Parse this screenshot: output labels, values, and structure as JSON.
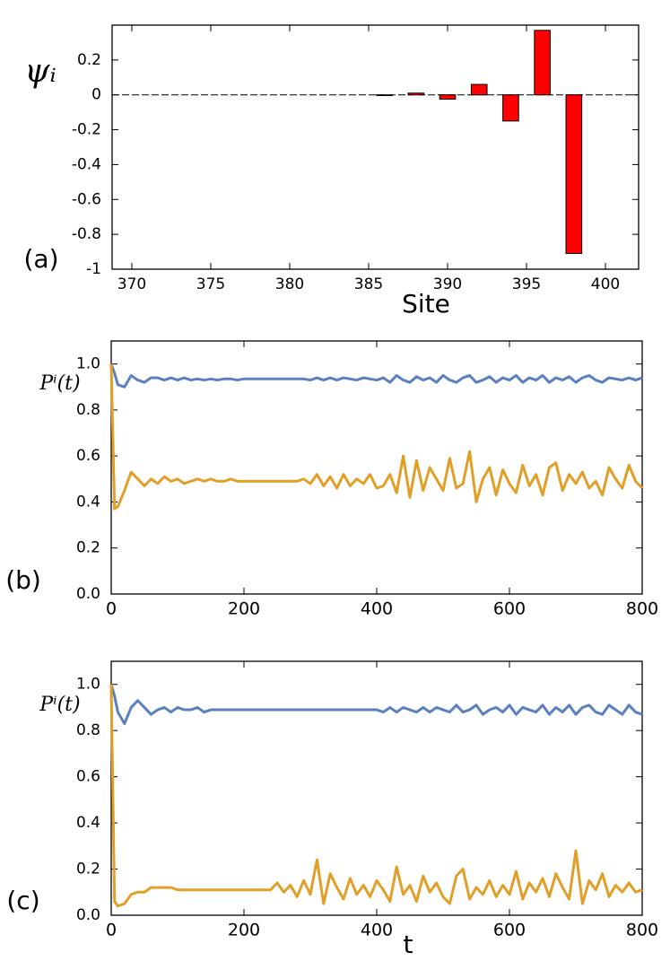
{
  "chart_data": [
    {
      "type": "bar",
      "y_label": "ψᵢ",
      "x_label": "Site",
      "annotation": "(a)",
      "color": "#ff0000",
      "x": [
        386,
        388,
        390,
        392,
        394,
        396,
        398
      ],
      "values": [
        -0.003,
        0.01,
        -0.025,
        0.06,
        -0.15,
        0.37,
        -0.91
      ],
      "xlim": [
        368.75,
        402.1
      ],
      "xticks": [
        370,
        375,
        380,
        385,
        390,
        395,
        400
      ],
      "ylim": [
        -1,
        0.4
      ],
      "yticks": [
        0.2,
        0,
        -0.2,
        -0.4,
        -0.6,
        -0.8,
        -1
      ]
    },
    {
      "type": "line",
      "y_label": "Pⁱ(t)",
      "annotation": "(b)",
      "x": [
        0,
        5,
        10,
        20,
        30,
        40,
        50,
        60,
        70,
        80,
        90,
        100,
        110,
        120,
        130,
        140,
        150,
        160,
        170,
        180,
        190,
        200,
        210,
        220,
        230,
        240,
        250,
        260,
        270,
        280,
        290,
        300,
        310,
        320,
        330,
        340,
        350,
        360,
        370,
        380,
        390,
        400,
        410,
        420,
        430,
        440,
        450,
        460,
        470,
        480,
        490,
        500,
        510,
        520,
        530,
        540,
        550,
        560,
        570,
        580,
        590,
        600,
        610,
        620,
        630,
        640,
        650,
        660,
        670,
        680,
        690,
        700,
        710,
        720,
        730,
        740,
        750,
        760,
        770,
        780,
        790,
        800
      ],
      "series": [
        {
          "color": "#5b80c0",
          "values": [
            1.0,
            0.96,
            0.91,
            0.9,
            0.95,
            0.93,
            0.92,
            0.94,
            0.94,
            0.93,
            0.94,
            0.93,
            0.94,
            0.93,
            0.935,
            0.93,
            0.935,
            0.93,
            0.935,
            0.935,
            0.93,
            0.935,
            0.935,
            0.935,
            0.935,
            0.935,
            0.935,
            0.935,
            0.935,
            0.935,
            0.935,
            0.93,
            0.94,
            0.93,
            0.94,
            0.93,
            0.94,
            0.935,
            0.93,
            0.94,
            0.935,
            0.93,
            0.94,
            0.92,
            0.95,
            0.93,
            0.92,
            0.945,
            0.93,
            0.94,
            0.92,
            0.95,
            0.93,
            0.92,
            0.94,
            0.95,
            0.92,
            0.93,
            0.945,
            0.92,
            0.94,
            0.93,
            0.95,
            0.92,
            0.94,
            0.93,
            0.95,
            0.92,
            0.94,
            0.93,
            0.945,
            0.92,
            0.94,
            0.95,
            0.93,
            0.92,
            0.94,
            0.935,
            0.93,
            0.94,
            0.93,
            0.94
          ]
        },
        {
          "color": "#e19f28",
          "values": [
            1.0,
            0.37,
            0.38,
            0.45,
            0.53,
            0.5,
            0.47,
            0.5,
            0.48,
            0.51,
            0.49,
            0.5,
            0.48,
            0.49,
            0.5,
            0.49,
            0.5,
            0.49,
            0.49,
            0.5,
            0.49,
            0.49,
            0.49,
            0.49,
            0.49,
            0.49,
            0.49,
            0.49,
            0.49,
            0.49,
            0.5,
            0.48,
            0.52,
            0.47,
            0.51,
            0.46,
            0.52,
            0.47,
            0.5,
            0.48,
            0.52,
            0.46,
            0.47,
            0.52,
            0.44,
            0.6,
            0.42,
            0.58,
            0.45,
            0.55,
            0.5,
            0.45,
            0.59,
            0.46,
            0.48,
            0.62,
            0.4,
            0.5,
            0.55,
            0.43,
            0.54,
            0.48,
            0.44,
            0.56,
            0.47,
            0.52,
            0.43,
            0.55,
            0.57,
            0.45,
            0.52,
            0.48,
            0.53,
            0.46,
            0.49,
            0.43,
            0.55,
            0.5,
            0.46,
            0.56,
            0.49,
            0.46
          ]
        }
      ],
      "xlim": [
        0,
        800
      ],
      "xticks": [
        0,
        200,
        400,
        600,
        800
      ],
      "ylim": [
        0,
        1.1
      ],
      "yticks": [
        {
          "value": 0,
          "label": "0.0"
        },
        0.2,
        0.4,
        0.6,
        0.8,
        {
          "value": 1,
          "label": "1.0"
        }
      ]
    },
    {
      "type": "line",
      "y_label": "Pⁱ(t)",
      "x_label": "t",
      "annotation": "(c)",
      "x": [
        0,
        5,
        10,
        20,
        30,
        40,
        50,
        60,
        70,
        80,
        90,
        100,
        110,
        120,
        130,
        140,
        150,
        160,
        170,
        180,
        190,
        200,
        210,
        220,
        230,
        240,
        250,
        260,
        270,
        280,
        290,
        300,
        310,
        320,
        330,
        340,
        350,
        360,
        370,
        380,
        390,
        400,
        410,
        420,
        430,
        440,
        450,
        460,
        470,
        480,
        490,
        500,
        510,
        520,
        530,
        540,
        550,
        560,
        570,
        580,
        590,
        600,
        610,
        620,
        630,
        640,
        650,
        660,
        670,
        680,
        690,
        700,
        710,
        720,
        730,
        740,
        750,
        760,
        770,
        780,
        790,
        800
      ],
      "series": [
        {
          "color": "#5b80c0",
          "values": [
            1.0,
            0.95,
            0.88,
            0.83,
            0.9,
            0.93,
            0.9,
            0.87,
            0.89,
            0.9,
            0.88,
            0.9,
            0.89,
            0.89,
            0.9,
            0.88,
            0.89,
            0.89,
            0.89,
            0.89,
            0.89,
            0.89,
            0.89,
            0.89,
            0.89,
            0.89,
            0.89,
            0.89,
            0.89,
            0.89,
            0.89,
            0.89,
            0.89,
            0.89,
            0.89,
            0.89,
            0.89,
            0.89,
            0.89,
            0.89,
            0.89,
            0.89,
            0.88,
            0.9,
            0.88,
            0.9,
            0.89,
            0.88,
            0.9,
            0.88,
            0.9,
            0.89,
            0.88,
            0.91,
            0.88,
            0.89,
            0.91,
            0.87,
            0.89,
            0.9,
            0.88,
            0.91,
            0.87,
            0.9,
            0.89,
            0.88,
            0.91,
            0.87,
            0.9,
            0.88,
            0.91,
            0.87,
            0.9,
            0.91,
            0.88,
            0.87,
            0.91,
            0.89,
            0.87,
            0.91,
            0.88,
            0.87
          ]
        },
        {
          "color": "#e19f28",
          "values": [
            1.0,
            0.06,
            0.04,
            0.05,
            0.09,
            0.1,
            0.1,
            0.12,
            0.12,
            0.12,
            0.12,
            0.11,
            0.11,
            0.11,
            0.11,
            0.11,
            0.11,
            0.11,
            0.11,
            0.11,
            0.11,
            0.11,
            0.11,
            0.11,
            0.11,
            0.11,
            0.14,
            0.1,
            0.13,
            0.08,
            0.15,
            0.09,
            0.24,
            0.05,
            0.18,
            0.12,
            0.07,
            0.16,
            0.09,
            0.13,
            0.08,
            0.15,
            0.11,
            0.06,
            0.21,
            0.09,
            0.13,
            0.06,
            0.17,
            0.1,
            0.14,
            0.08,
            0.05,
            0.17,
            0.2,
            0.07,
            0.12,
            0.09,
            0.15,
            0.08,
            0.13,
            0.09,
            0.19,
            0.07,
            0.14,
            0.1,
            0.16,
            0.08,
            0.18,
            0.12,
            0.07,
            0.28,
            0.05,
            0.15,
            0.11,
            0.18,
            0.08,
            0.13,
            0.1,
            0.14,
            0.1,
            0.11
          ]
        }
      ],
      "xlim": [
        0,
        800
      ],
      "xticks": [
        0,
        200,
        400,
        600,
        800
      ],
      "ylim": [
        0,
        1.1
      ],
      "yticks": [
        {
          "value": 0,
          "label": "0.0"
        },
        0.2,
        0.4,
        0.6,
        0.8,
        {
          "value": 1,
          "label": "1.0"
        }
      ]
    }
  ]
}
